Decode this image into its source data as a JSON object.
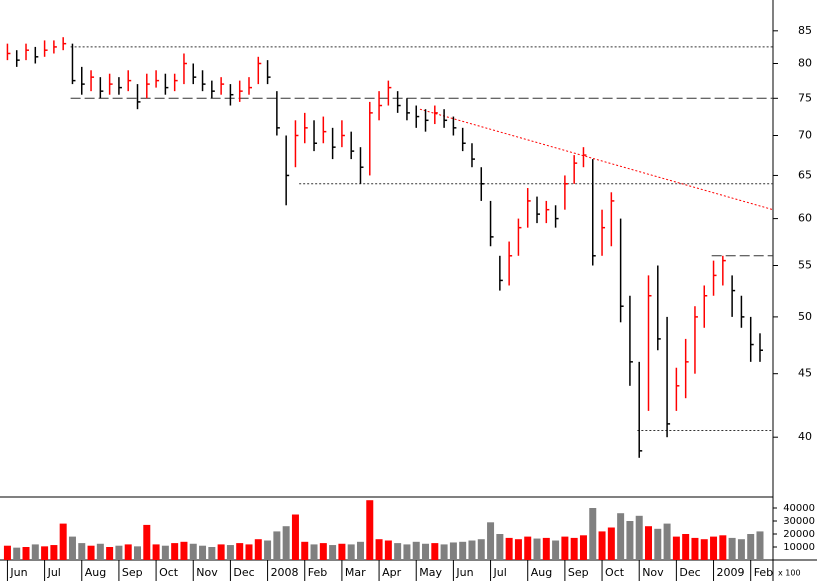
{
  "chart_data": {
    "type": "ohlc",
    "log_scale": true,
    "up_color": "#ff0000",
    "down_color": "#000000",
    "volume_up_color": "#ff0000",
    "volume_down_color": "#808080",
    "xlim": [
      -0.2,
      20.6
    ],
    "xticks": [
      {
        "value": 0,
        "label": "Jun"
      },
      {
        "value": 1,
        "label": "Jul"
      },
      {
        "value": 2,
        "label": "Aug"
      },
      {
        "value": 3,
        "label": "Sep"
      },
      {
        "value": 4,
        "label": "Oct"
      },
      {
        "value": 5,
        "label": "Nov"
      },
      {
        "value": 6,
        "label": "Dec"
      },
      {
        "value": 7,
        "label": "2008"
      },
      {
        "value": 8,
        "label": "Feb"
      },
      {
        "value": 9,
        "label": "Mar"
      },
      {
        "value": 10,
        "label": "Apr"
      },
      {
        "value": 11,
        "label": "May"
      },
      {
        "value": 12,
        "label": "Jun"
      },
      {
        "value": 13,
        "label": "Jul"
      },
      {
        "value": 14,
        "label": "Aug"
      },
      {
        "value": 15,
        "label": "Sep"
      },
      {
        "value": 16,
        "label": "Oct"
      },
      {
        "value": 17,
        "label": "Nov"
      },
      {
        "value": 18,
        "label": "Dec"
      },
      {
        "value": 19,
        "label": "2009"
      },
      {
        "value": 20,
        "label": "Feb"
      }
    ],
    "ylim": [
      35.8,
      90
    ],
    "yticks": [
      40,
      45,
      50,
      55,
      60,
      65,
      70,
      75,
      80,
      85
    ],
    "x": [
      0,
      0.25,
      0.5,
      0.75,
      1,
      1.25,
      1.5,
      1.75,
      2,
      2.25,
      2.5,
      2.75,
      3,
      3.25,
      3.5,
      3.75,
      4,
      4.25,
      4.5,
      4.75,
      5,
      5.25,
      5.5,
      5.75,
      6,
      6.25,
      6.5,
      6.75,
      7,
      7.25,
      7.5,
      7.75,
      8,
      8.25,
      8.5,
      8.75,
      9,
      9.25,
      9.5,
      9.75,
      10,
      10.25,
      10.5,
      10.75,
      11,
      11.25,
      11.5,
      11.75,
      12,
      12.25,
      12.5,
      12.75,
      13,
      13.25,
      13.5,
      13.75,
      14,
      14.25,
      14.5,
      14.75,
      15,
      15.25,
      15.5,
      15.75,
      16,
      16.25,
      16.5,
      16.75,
      17,
      17.25,
      17.5,
      17.75,
      18,
      18.25,
      18.5,
      18.75,
      19,
      19.25,
      19.5,
      19.75,
      20,
      20.25
    ],
    "close": [
      81.5,
      80.5,
      82,
      81,
      82,
      82.5,
      83,
      77.5,
      77,
      78,
      76,
      77,
      76.5,
      77.5,
      74.5,
      77,
      77.5,
      76.5,
      77.5,
      80,
      78,
      77,
      76,
      77,
      75.5,
      76,
      76.5,
      80,
      78,
      71,
      65,
      70,
      71,
      69,
      70.5,
      68.5,
      70,
      68,
      66,
      73,
      74,
      76.5,
      74,
      73,
      72.5,
      72,
      73,
      72,
      71,
      69,
      67,
      64,
      58,
      53.5,
      56,
      59,
      62,
      60.5,
      61,
      60,
      64,
      66.5,
      67.5,
      56,
      59,
      62,
      51,
      46,
      39,
      52,
      48,
      41,
      44,
      46,
      50,
      52,
      54,
      55.5,
      52.5,
      50,
      47.5,
      47
    ],
    "high": [
      83,
      82,
      83,
      82.5,
      83.5,
      83.5,
      84,
      83,
      79.5,
      79,
      78,
      78.5,
      78,
      79,
      77,
      78.5,
      79,
      78.5,
      78.5,
      81.5,
      80,
      79,
      77.5,
      78,
      77,
      77.5,
      78,
      81,
      80.5,
      76,
      70,
      72,
      73,
      72,
      72.5,
      71,
      72,
      70.5,
      68.5,
      74.5,
      76,
      77.5,
      76,
      75,
      74,
      73.5,
      74,
      73.5,
      72.5,
      71,
      69,
      66,
      62,
      56,
      57.5,
      60,
      63.5,
      62.5,
      62,
      61.5,
      65,
      67.5,
      68.5,
      67,
      61,
      63,
      60,
      52,
      46,
      54,
      55,
      50,
      45.5,
      48,
      51,
      53,
      55.5,
      56,
      54,
      52,
      50,
      48.5
    ],
    "low": [
      80.5,
      79.5,
      80.5,
      80,
      81,
      81.5,
      82,
      77,
      75.5,
      76,
      75,
      75.5,
      75.5,
      76,
      73.5,
      75,
      76.5,
      75.5,
      76,
      77,
      77,
      76,
      75,
      75.5,
      74,
      74.5,
      75.5,
      77,
      77,
      70,
      61.5,
      66,
      69,
      68,
      69,
      67,
      68.5,
      67,
      64,
      65,
      72,
      74,
      73,
      72,
      71,
      70.5,
      71.5,
      71,
      70,
      68,
      66,
      62,
      57,
      52.5,
      53,
      56,
      59,
      59.5,
      59.5,
      59,
      61,
      64,
      66,
      55,
      56,
      57,
      49.5,
      44,
      38.5,
      42,
      47,
      40,
      42,
      43,
      45,
      49,
      52,
      53,
      50,
      49,
      46,
      46
    ],
    "volume": [
      11000,
      9500,
      10000,
      12000,
      10500,
      11500,
      28000,
      18000,
      13000,
      11000,
      12500,
      10000,
      11000,
      12000,
      10500,
      27000,
      12000,
      11000,
      13000,
      14000,
      12500,
      11000,
      10000,
      12000,
      11500,
      13000,
      12000,
      16000,
      15000,
      22000,
      26000,
      35000,
      14000,
      12000,
      13000,
      11500,
      12500,
      12000,
      14000,
      46000,
      16000,
      15000,
      13000,
      12000,
      14000,
      12500,
      13000,
      12000,
      13500,
      14000,
      15000,
      16000,
      29000,
      20000,
      17000,
      16000,
      18000,
      16500,
      17000,
      15000,
      18000,
      17000,
      19000,
      40000,
      22000,
      25000,
      36000,
      30000,
      34000,
      26000,
      24000,
      28000,
      18000,
      20000,
      17000,
      16000,
      18000,
      19000,
      17000,
      16000,
      20000,
      22000
    ],
    "volume_ylim": [
      0,
      47700
    ],
    "volume_yticks": [
      10000,
      20000,
      30000,
      40000
    ],
    "volume_unit": "x 100",
    "hlines": [
      {
        "value": 82.5,
        "from": 1.7,
        "style": "dotted"
      },
      {
        "value": 75,
        "from": 1.7,
        "style": "dashed"
      },
      {
        "value": 64,
        "from": 7.85,
        "style": "dotted"
      },
      {
        "value": 56,
        "from": 18.95,
        "style": "dashed"
      },
      {
        "value": 40.5,
        "from": 16.95,
        "style": "dotted"
      }
    ],
    "trendline": {
      "x": [
        11.1,
        20.6
      ],
      "y": [
        73.5,
        61
      ],
      "color": "#ff0000"
    }
  }
}
